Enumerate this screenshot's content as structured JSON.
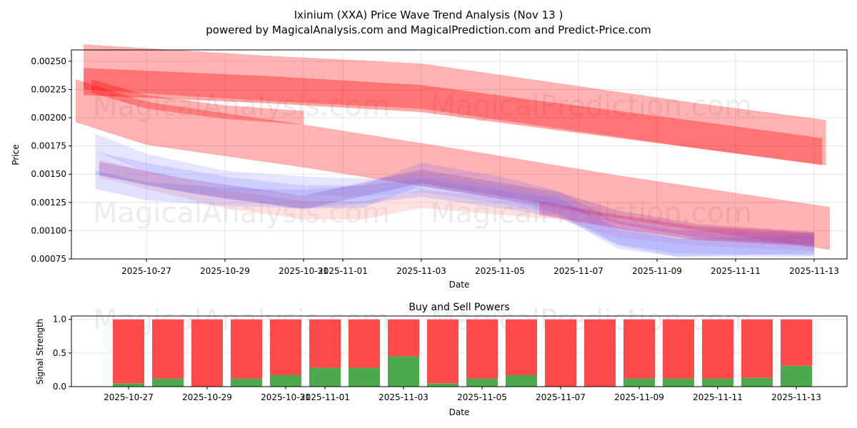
{
  "chart_data": [
    {
      "type": "area",
      "title": "Ixinium (XXA) Price Wave Trend Analysis (Nov 13 )",
      "subtitle": "powered by MagicalAnalysis.com and MagicalPrediction.com and Predict-Price.com",
      "xlabel": "Date",
      "ylabel": "Price",
      "ylim": [
        0.00075,
        0.0026
      ],
      "yticks": [
        "0.00075",
        "0.00100",
        "0.00125",
        "0.00150",
        "0.00175",
        "0.00200",
        "0.00225",
        "0.00250"
      ],
      "ytick_values": [
        0.00075,
        0.001,
        0.00125,
        0.0015,
        0.00175,
        0.002,
        0.00225,
        0.0025
      ],
      "xticks": [
        "2025-10-27",
        "2025-10-29",
        "2025-10-31",
        "2025-11-01",
        "2025-11-03",
        "2025-11-05",
        "2025-11-07",
        "2025-11-09",
        "2025-11-11",
        "2025-11-13"
      ],
      "xtick_days": [
        0,
        2,
        4,
        5,
        7,
        9,
        11,
        13,
        15,
        17
      ],
      "xlim_days": [
        -1.9,
        17.8
      ],
      "grid": true,
      "watermarks": [
        "MagicalAnalysis.com",
        "MagicalPrediction.com"
      ],
      "bands": [
        {
          "color": "#ff0000",
          "opacity": 0.3,
          "hw": 0.00019,
          "days": [
            -1.8,
            0,
            4,
            8,
            12,
            17.4
          ],
          "values": [
            0.00215,
            0.00195,
            0.00175,
            0.00153,
            0.0013,
            0.00102
          ]
        },
        {
          "color": "#ff0000",
          "opacity": 0.3,
          "hw": 0.0002,
          "days": [
            -1.6,
            3,
            7,
            10,
            14,
            17.3
          ],
          "values": [
            0.00245,
            0.00235,
            0.00228,
            0.00213,
            0.00193,
            0.00178
          ]
        },
        {
          "color": "#ff0000",
          "opacity": 0.35,
          "hw": 0.00012,
          "days": [
            -1.6,
            3,
            7,
            10,
            14,
            17.2
          ],
          "values": [
            0.00232,
            0.00225,
            0.00217,
            0.00203,
            0.00185,
            0.0017
          ]
        },
        {
          "color": "#ff0000",
          "opacity": 0.3,
          "hw": 6e-05,
          "days": [
            -1.4,
            0,
            2,
            4
          ],
          "values": [
            0.00228,
            0.00214,
            0.00205,
            0.002
          ]
        },
        {
          "color": "#ffaaaa",
          "opacity": 0.35,
          "hw": 8e-05,
          "days": [
            -1.2,
            0,
            2,
            4,
            5.5,
            7,
            9,
            10.5,
            12,
            14,
            17
          ],
          "values": [
            0.00155,
            0.00145,
            0.00128,
            0.00118,
            0.00118,
            0.00128,
            0.00122,
            0.00118,
            0.00102,
            0.00095,
            0.0009
          ]
        },
        {
          "color": "#6666ff",
          "opacity": 0.2,
          "hw": 0.0001,
          "days": [
            -1.3,
            0,
            2,
            4,
            5.5,
            7,
            9,
            10.5,
            12,
            13.5,
            17
          ],
          "values": [
            0.0016,
            0.0015,
            0.00138,
            0.0013,
            0.0013,
            0.0015,
            0.00138,
            0.00125,
            0.00098,
            0.0009,
            0.00088
          ]
        },
        {
          "color": "#6666ff",
          "opacity": 0.2,
          "hw": 8e-05,
          "days": [
            -1.3,
            0,
            2,
            4,
            5.5,
            7,
            9,
            10.5,
            12,
            13.5,
            17
          ],
          "values": [
            0.00145,
            0.00135,
            0.0013,
            0.00128,
            0.00132,
            0.00138,
            0.00128,
            0.0012,
            0.00095,
            0.00085,
            0.00088
          ]
        },
        {
          "color": "#9999ff",
          "opacity": 0.25,
          "hw": 8e-05,
          "days": [
            -1.3,
            0,
            2,
            4,
            5.5,
            7,
            9,
            10.5,
            12,
            13.5,
            17
          ],
          "values": [
            0.00178,
            0.0016,
            0.00145,
            0.0014,
            0.00138,
            0.00142,
            0.00132,
            0.00122,
            0.00092,
            0.00085,
            0.00085
          ]
        },
        {
          "color": "#8844aa",
          "opacity": 0.25,
          "hw": 6e-05,
          "days": [
            -1.2,
            1,
            4,
            7,
            10.5,
            12,
            14,
            17
          ],
          "values": [
            0.00155,
            0.0014,
            0.00125,
            0.00148,
            0.00128,
            0.00112,
            0.001,
            0.00093
          ]
        },
        {
          "color": "#cc2277",
          "opacity": 0.3,
          "hw": 6e-05,
          "days": [
            10,
            12,
            14,
            17
          ],
          "values": [
            0.0012,
            0.00108,
            0.00098,
            0.00092
          ]
        }
      ]
    },
    {
      "type": "bar",
      "title": "Buy and Sell Powers",
      "xlabel": "Date",
      "ylabel": "Signal Strength",
      "ylim": [
        0,
        1.05
      ],
      "yticks": [
        "0.0",
        "0.5",
        "1.0"
      ],
      "ytick_values": [
        0,
        0.5,
        1
      ],
      "xticks": [
        "2025-10-27",
        "2025-10-29",
        "2025-10-31",
        "2025-11-01",
        "2025-11-03",
        "2025-11-05",
        "2025-11-07",
        "2025-11-09",
        "2025-11-11",
        "2025-11-13"
      ],
      "xtick_days": [
        0,
        2,
        4,
        5,
        7,
        9,
        11,
        13,
        15,
        17
      ],
      "categories_days": [
        0,
        1,
        2,
        3,
        4,
        5,
        6,
        7,
        8,
        9,
        10,
        11,
        12,
        13,
        14,
        15,
        16,
        17
      ],
      "series": [
        {
          "name": "Buy",
          "color": "#4caa4c",
          "values": [
            0.05,
            0.12,
            0,
            0.12,
            0.17,
            0.28,
            0.28,
            0.45,
            0.05,
            0.12,
            0.17,
            0,
            0,
            0.12,
            0.12,
            0.12,
            0.13,
            0.31
          ]
        },
        {
          "name": "Sell",
          "color": "#ff4a4a",
          "values": [
            0.95,
            0.88,
            1,
            0.88,
            0.83,
            0.72,
            0.72,
            0.55,
            0.95,
            0.88,
            0.83,
            1,
            1,
            0.88,
            0.88,
            0.88,
            0.87,
            0.69
          ]
        }
      ]
    }
  ]
}
